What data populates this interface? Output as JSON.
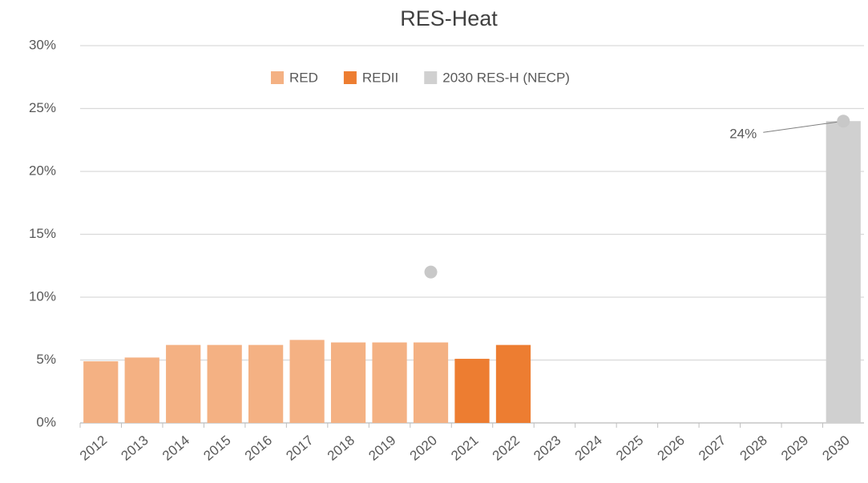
{
  "chart_data": {
    "type": "bar",
    "title": "RES-Heat",
    "categories": [
      "2012",
      "2013",
      "2014",
      "2015",
      "2016",
      "2017",
      "2018",
      "2019",
      "2020",
      "2021",
      "2022",
      "2023",
      "2024",
      "2025",
      "2026",
      "2027",
      "2028",
      "2029",
      "2030"
    ],
    "series": [
      {
        "name": "RED",
        "color": "#f4b183",
        "values": [
          4.9,
          5.2,
          6.2,
          6.2,
          6.2,
          6.6,
          6.4,
          6.4,
          6.4,
          null,
          null,
          null,
          null,
          null,
          null,
          null,
          null,
          null,
          null
        ]
      },
      {
        "name": "REDII",
        "color": "#ed7d31",
        "values": [
          null,
          null,
          null,
          null,
          null,
          null,
          null,
          null,
          null,
          5.1,
          6.2,
          null,
          null,
          null,
          null,
          null,
          null,
          null,
          null
        ]
      },
      {
        "name": "2030 RES-H (NECP)",
        "color": "#d0d0d0",
        "values": [
          null,
          null,
          null,
          null,
          null,
          null,
          null,
          null,
          null,
          null,
          null,
          null,
          null,
          null,
          null,
          null,
          null,
          null,
          24
        ],
        "value_labels": [
          null,
          null,
          null,
          null,
          null,
          null,
          null,
          null,
          null,
          null,
          null,
          null,
          null,
          null,
          null,
          null,
          null,
          null,
          "24%"
        ]
      },
      {
        "type": "line",
        "dashed": true,
        "color": "#c8c8c8",
        "values": [
          null,
          null,
          null,
          null,
          null,
          null,
          null,
          null,
          12,
          null,
          null,
          null,
          null,
          null,
          null,
          null,
          null,
          null,
          24
        ]
      }
    ],
    "ylim": [
      0,
      30
    ],
    "yticks": [
      {
        "value": 0,
        "label": "0%"
      },
      {
        "value": 5,
        "label": "5%"
      },
      {
        "value": 10,
        "label": "10%"
      },
      {
        "value": 15,
        "label": "15%"
      },
      {
        "value": 20,
        "label": "20%"
      },
      {
        "value": 25,
        "label": "25%"
      },
      {
        "value": 30,
        "label": "30%"
      }
    ],
    "grid": true,
    "legend": "top"
  }
}
